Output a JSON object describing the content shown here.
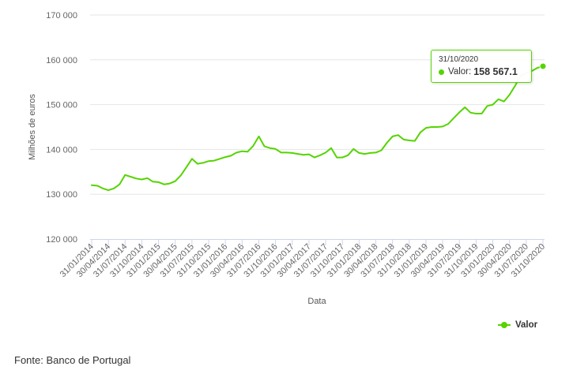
{
  "chart_data": {
    "type": "line",
    "xlabel": "Data",
    "ylabel": "Milhões de euros",
    "ylim": [
      120000,
      170000
    ],
    "yticks": [
      "120 000",
      "130 000",
      "140 000",
      "150 000",
      "160 000",
      "170 000"
    ],
    "yticks_values": [
      120000,
      130000,
      140000,
      150000,
      160000,
      170000
    ],
    "xtick_labels": [
      "31/01/2014",
      "30/04/2014",
      "31/07/2014",
      "31/10/2014",
      "31/01/2015",
      "30/04/2015",
      "31/07/2015",
      "31/10/2015",
      "31/01/2016",
      "30/04/2016",
      "31/07/2016",
      "31/10/2016",
      "31/01/2017",
      "30/04/2017",
      "31/07/2017",
      "31/10/2017",
      "31/01/2018",
      "30/04/2018",
      "31/07/2018",
      "31/10/2018",
      "31/01/2019",
      "30/04/2019",
      "31/07/2019",
      "31/10/2019",
      "31/01/2020",
      "30/04/2020",
      "31/07/2020",
      "31/10/2020"
    ],
    "grid": "horizontal",
    "legend_position": "bottom-right",
    "series": [
      {
        "name": "Valor",
        "color": "#55d400",
        "values": [
          132000,
          131900,
          131300,
          130900,
          131300,
          132200,
          134300,
          133900,
          133500,
          133300,
          133600,
          132800,
          132700,
          132200,
          132400,
          132900,
          134200,
          136000,
          137900,
          136800,
          137000,
          137400,
          137500,
          137900,
          138300,
          138600,
          139300,
          139600,
          139500,
          140800,
          142900,
          140700,
          140300,
          140100,
          139300,
          139300,
          139200,
          139000,
          138800,
          138900,
          138200,
          138700,
          139300,
          140300,
          138200,
          138200,
          138700,
          140100,
          139200,
          139000,
          139200,
          139300,
          139800,
          141500,
          142900,
          143200,
          142200,
          142000,
          141900,
          143800,
          144800,
          145000,
          145000,
          145100,
          145700,
          147000,
          148300,
          149400,
          148200,
          148000,
          148000,
          149700,
          150000,
          151200,
          150700,
          152200,
          154200,
          156500,
          157000,
          157500,
          158200,
          158567.1
        ]
      }
    ]
  },
  "tooltip": {
    "date": "31/10/2020",
    "series_label": "Valor:",
    "value": "158 567.1"
  },
  "legend": {
    "label": "Valor"
  },
  "source": "Fonte: Banco de Portugal"
}
